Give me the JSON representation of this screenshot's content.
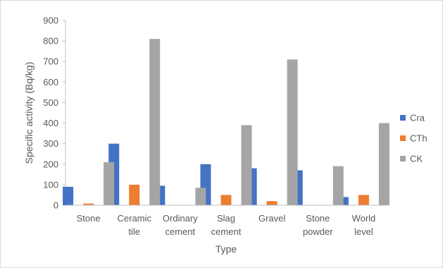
{
  "chart_data": {
    "type": "bar",
    "title": "",
    "xlabel": "Type",
    "ylabel": "Specific activity (Bq/kg)",
    "ylim": [
      0,
      900
    ],
    "yticks": [
      0,
      100,
      200,
      300,
      400,
      500,
      600,
      700,
      800,
      900
    ],
    "grid": false,
    "legend_position": "right",
    "categories": [
      [
        "Stone"
      ],
      [
        "Ceramic",
        "tile"
      ],
      [
        "Ordinary",
        "cement"
      ],
      [
        "Slag",
        "cement"
      ],
      [
        "Gravel"
      ],
      [
        "Stone",
        "powder"
      ],
      [
        "World",
        "level"
      ]
    ],
    "series": [
      {
        "name": "Cra",
        "color": "#4472c4",
        "values": [
          90,
          300,
          95,
          200,
          180,
          170,
          40
        ]
      },
      {
        "name": "CTh",
        "color": "#ed7d31",
        "values": [
          8,
          100,
          0,
          50,
          20,
          0,
          50
        ]
      },
      {
        "name": "CK",
        "color": "#a5a5a5",
        "values": [
          210,
          810,
          85,
          390,
          710,
          190,
          400
        ]
      }
    ]
  }
}
